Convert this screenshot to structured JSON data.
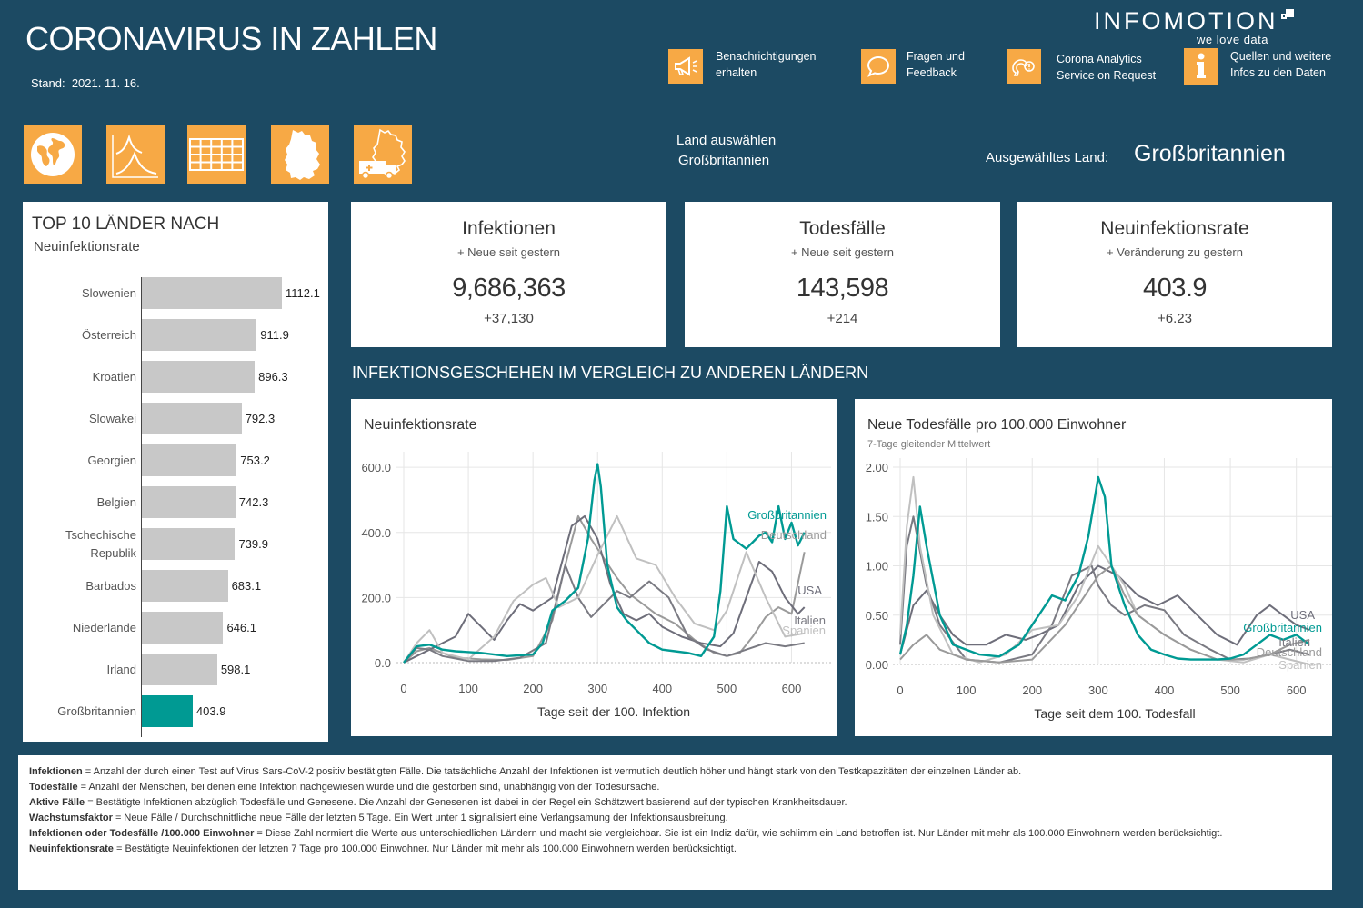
{
  "header": {
    "title": "CORONAVIRUS IN ZAHLEN",
    "stand_label": "Stand:",
    "stand_date": "2021. 11. 16.",
    "logo_name": "INFOMOTION",
    "logo_tagline": "we love data"
  },
  "top_actions": [
    {
      "icon": "megaphone-icon",
      "line1": "Benachrichtigungen",
      "line2": "erhalten"
    },
    {
      "icon": "chat-bubble-icon",
      "line1": "Fragen und",
      "line2": "Feedback"
    },
    {
      "icon": "analytics-service-icon",
      "line1": "Corona Analytics",
      "line2": "Service on Request"
    },
    {
      "icon": "info-icon",
      "line1": "Quellen und weitere",
      "line2": "Infos zu den Daten"
    }
  ],
  "nav_icons": [
    "globe-icon",
    "curve-chart-icon",
    "table-grid-icon",
    "germany-map-icon",
    "germany-map-vehicle-icon"
  ],
  "country_select": {
    "label": "Land auswählen",
    "value": "Großbritannien",
    "selected_label": "Ausgewähltes Land:",
    "selected_value": "Großbritannien"
  },
  "top10": {
    "title": "TOP 10 LÄNDER NACH",
    "subtitle": "Neuinfektionsrate",
    "max": 1112.1,
    "items": [
      {
        "label": "Slowenien",
        "value": 1112.1,
        "display": "1112.1"
      },
      {
        "label": "Österreich",
        "value": 911.9,
        "display": "911.9"
      },
      {
        "label": "Kroatien",
        "value": 896.3,
        "display": "896.3"
      },
      {
        "label": "Slowakei",
        "value": 792.3,
        "display": "792.3"
      },
      {
        "label": "Georgien",
        "value": 753.2,
        "display": "753.2"
      },
      {
        "label": "Belgien",
        "value": 742.3,
        "display": "742.3"
      },
      {
        "label": "Tschechische",
        "label2": "Republik",
        "value": 739.9,
        "display": "739.9"
      },
      {
        "label": "Barbados",
        "value": 683.1,
        "display": "683.1"
      },
      {
        "label": "Niederlande",
        "value": 646.1,
        "display": "646.1"
      },
      {
        "label": "Irland",
        "value": 598.1,
        "display": "598.1"
      },
      {
        "label": "Großbritannien",
        "value": 403.9,
        "display": "403.9",
        "highlight": true
      }
    ]
  },
  "kpis": {
    "infections": {
      "title": "Infektionen",
      "sub": "+ Neue seit gestern",
      "value": "9,686,363",
      "delta": "+37,130"
    },
    "deaths": {
      "title": "Todesfälle",
      "sub": "+ Neue seit gestern",
      "value": "143,598",
      "delta": "+214"
    },
    "rate": {
      "title": "Neuinfektionsrate",
      "sub": "+ Veränderung zu gestern",
      "value": "403.9",
      "delta": "+6.23"
    }
  },
  "section_title": "INFEKTIONSGESCHEHEN IM VERGLEICH ZU ANDEREN LÄNDERN",
  "colors": {
    "background": "#1c4a63",
    "accent": "#f7a945",
    "highlight": "#009a93",
    "bar": "#c8c8c8"
  },
  "chart_data": [
    {
      "type": "line",
      "title": "Neuinfektionsrate",
      "xlabel": "Tage seit der 100. Infektion",
      "xlim": [
        0,
        650
      ],
      "ylim": [
        0,
        620
      ],
      "xticks": [
        0,
        100,
        200,
        300,
        400,
        500,
        600
      ],
      "yticks": [
        0,
        200,
        400,
        600
      ],
      "ytick_labels": [
        "0.0",
        "200.0",
        "400.0",
        "600.0"
      ],
      "grid": true,
      "series": [
        {
          "name": "Großbritannien",
          "color": "#009a93",
          "highlight": true,
          "x": [
            0,
            20,
            40,
            60,
            80,
            120,
            160,
            200,
            215,
            230,
            250,
            270,
            285,
            295,
            300,
            305,
            315,
            330,
            345,
            360,
            380,
            400,
            420,
            440,
            460,
            480,
            490,
            500,
            510,
            530,
            550,
            560,
            570,
            580,
            590,
            600,
            610,
            620
          ],
          "y": [
            0,
            50,
            55,
            40,
            35,
            30,
            20,
            25,
            60,
            160,
            190,
            230,
            380,
            560,
            610,
            540,
            300,
            170,
            130,
            100,
            60,
            40,
            35,
            30,
            20,
            80,
            220,
            480,
            380,
            350,
            390,
            400,
            370,
            480,
            380,
            430,
            360,
            400
          ]
        },
        {
          "name": "Deutschland",
          "color": "#9a9a9a",
          "x": [
            0,
            20,
            40,
            60,
            80,
            120,
            160,
            200,
            230,
            250,
            270,
            290,
            310,
            330,
            350,
            370,
            390,
            420,
            450,
            480,
            500,
            520,
            540,
            560,
            580,
            600,
            620
          ],
          "y": [
            0,
            35,
            45,
            30,
            15,
            10,
            8,
            20,
            130,
            300,
            450,
            380,
            320,
            260,
            210,
            180,
            150,
            120,
            70,
            30,
            20,
            30,
            80,
            140,
            170,
            150,
            340
          ]
        },
        {
          "name": "USA",
          "color": "#6e6e7a",
          "x": [
            0,
            20,
            40,
            60,
            80,
            100,
            120,
            140,
            160,
            180,
            200,
            230,
            260,
            280,
            300,
            320,
            340,
            360,
            380,
            400,
            430,
            460,
            490,
            510,
            530,
            550,
            570,
            590,
            610,
            620
          ],
          "y": [
            0,
            20,
            40,
            60,
            80,
            150,
            110,
            70,
            130,
            180,
            160,
            200,
            420,
            450,
            380,
            240,
            150,
            130,
            150,
            110,
            80,
            60,
            50,
            90,
            200,
            310,
            280,
            200,
            150,
            170
          ]
        },
        {
          "name": "Italien",
          "color": "#7a7a82",
          "x": [
            0,
            20,
            40,
            60,
            100,
            140,
            180,
            220,
            250,
            270,
            290,
            310,
            330,
            350,
            380,
            410,
            440,
            470,
            500,
            530,
            560,
            590,
            620
          ],
          "y": [
            0,
            45,
            40,
            20,
            5,
            5,
            15,
            60,
            300,
            200,
            140,
            180,
            220,
            200,
            250,
            200,
            80,
            40,
            20,
            40,
            60,
            50,
            60
          ]
        },
        {
          "name": "Spanien",
          "color": "#c0c0c0",
          "x": [
            0,
            20,
            40,
            60,
            100,
            140,
            170,
            200,
            220,
            240,
            270,
            300,
            330,
            360,
            390,
            420,
            450,
            480,
            500,
            530,
            560,
            590,
            620
          ],
          "y": [
            0,
            60,
            100,
            30,
            10,
            80,
            190,
            240,
            260,
            170,
            200,
            330,
            450,
            320,
            300,
            200,
            120,
            100,
            160,
            340,
            200,
            80,
            90
          ]
        }
      ]
    },
    {
      "type": "line",
      "title": "Neue Todesfälle pro 100.000 Einwohner",
      "subtitle": "7-Tage gleitender Mittelwert",
      "xlabel": "Tage seit dem 100. Todesfall",
      "xlim": [
        0,
        650
      ],
      "ylim": [
        0,
        2.0
      ],
      "xticks": [
        0,
        100,
        200,
        300,
        400,
        500,
        600
      ],
      "yticks": [
        0,
        0.5,
        1.0,
        1.5,
        2.0
      ],
      "ytick_labels": [
        "0.00",
        "0.50",
        "1.00",
        "1.50",
        "2.00"
      ],
      "grid": true,
      "series": [
        {
          "name": "Großbritannien",
          "color": "#009a93",
          "highlight": true,
          "x": [
            0,
            10,
            20,
            30,
            40,
            60,
            80,
            100,
            120,
            150,
            180,
            200,
            230,
            250,
            270,
            285,
            300,
            310,
            320,
            340,
            360,
            380,
            400,
            420,
            440,
            460,
            480,
            500,
            520,
            540,
            560,
            580,
            600,
            620
          ],
          "y": [
            0.1,
            0.4,
            0.9,
            1.6,
            1.2,
            0.5,
            0.2,
            0.15,
            0.1,
            0.08,
            0.2,
            0.4,
            0.7,
            0.65,
            0.9,
            1.3,
            1.9,
            1.7,
            1.0,
            0.6,
            0.3,
            0.15,
            0.1,
            0.06,
            0.05,
            0.05,
            0.05,
            0.06,
            0.1,
            0.2,
            0.3,
            0.25,
            0.3,
            0.2
          ]
        },
        {
          "name": "USA",
          "color": "#6e6e7a",
          "x": [
            0,
            20,
            40,
            60,
            80,
            100,
            130,
            160,
            190,
            210,
            240,
            270,
            300,
            330,
            360,
            390,
            420,
            450,
            480,
            510,
            540,
            560,
            580,
            600,
            620
          ],
          "y": [
            0.1,
            0.6,
            0.75,
            0.5,
            0.3,
            0.2,
            0.2,
            0.3,
            0.25,
            0.3,
            0.4,
            0.8,
            1.0,
            0.9,
            0.7,
            0.6,
            0.7,
            0.5,
            0.3,
            0.2,
            0.5,
            0.6,
            0.5,
            0.4,
            0.35
          ]
        },
        {
          "name": "Italien",
          "color": "#7a7a82",
          "x": [
            0,
            10,
            20,
            40,
            60,
            100,
            150,
            200,
            230,
            260,
            290,
            300,
            320,
            340,
            370,
            400,
            430,
            470,
            500,
            530,
            560,
            590,
            620
          ],
          "y": [
            0.2,
            1.2,
            1.5,
            0.8,
            0.4,
            0.05,
            0.02,
            0.1,
            0.4,
            0.9,
            1.0,
            0.8,
            0.6,
            0.5,
            0.6,
            0.55,
            0.3,
            0.15,
            0.05,
            0.06,
            0.1,
            0.15,
            0.1
          ]
        },
        {
          "name": "Spanien",
          "color": "#c0c0c0",
          "x": [
            0,
            10,
            20,
            30,
            50,
            80,
            120,
            160,
            200,
            240,
            270,
            300,
            320,
            340,
            360,
            380,
            400,
            440,
            480,
            520,
            560,
            590,
            620
          ],
          "y": [
            0.3,
            1.4,
            1.9,
            1.2,
            0.5,
            0.1,
            0.02,
            0.1,
            0.35,
            0.4,
            0.7,
            1.2,
            1.0,
            0.8,
            0.5,
            0.4,
            0.3,
            0.15,
            0.05,
            0.02,
            0.1,
            0.05,
            0.0
          ]
        },
        {
          "name": "Deutschland",
          "color": "#9a9a9a",
          "x": [
            0,
            20,
            40,
            60,
            100,
            150,
            200,
            250,
            280,
            300,
            320,
            340,
            360,
            380,
            400,
            440,
            480,
            520,
            560,
            590,
            620
          ],
          "y": [
            0.05,
            0.2,
            0.3,
            0.15,
            0.05,
            0.02,
            0.05,
            0.4,
            0.7,
            0.9,
            1.0,
            0.7,
            0.5,
            0.4,
            0.3,
            0.15,
            0.05,
            0.05,
            0.1,
            0.2,
            0.25
          ]
        }
      ]
    }
  ],
  "definitions": [
    {
      "term": "Infektionen",
      "text": " = Anzahl der durch einen Test auf Virus Sars-CoV-2 positiv bestätigten Fälle. Die tatsächliche Anzahl der Infektionen ist vermutlich deutlich höher und hängt stark von den Testkapazitäten der einzelnen Länder ab."
    },
    {
      "term": "Todesfälle",
      "text": " = Anzahl der Menschen, bei denen eine Infektion nachgewiesen wurde und die gestorben sind, unabhängig von der Todesursache."
    },
    {
      "term": "Aktive Fälle",
      "text": " = Bestätigte Infektionen abzüglich Todesfälle und Genesene. Die Anzahl der Genesenen ist dabei in der Regel ein Schätzwert basierend auf der typischen Krankheitsdauer."
    },
    {
      "term": "Wachstumsfaktor",
      "text": " = Neue Fälle / Durchschnittliche neue Fälle der letzten 5 Tage. Ein Wert unter 1 signalisiert eine Verlangsamung der Infektionsausbreitung."
    },
    {
      "term": "Infektionen oder Todesfälle /100.000 Einwohner",
      "text": " = Diese Zahl normiert die Werte aus unterschiedlichen Ländern und macht sie vergleichbar. Sie ist ein Indiz dafür, wie schlimm ein Land betroffen ist. Nur Länder mit mehr als 100.000 Einwohnern werden berücksichtigt."
    },
    {
      "term": "Neuinfektionsrate",
      "text": " = Bestätigte Neuinfektionen der letzten 7 Tage pro 100.000 Einwohner. Nur Länder mit mehr als 100.000 Einwohnern werden berücksichtigt."
    }
  ]
}
